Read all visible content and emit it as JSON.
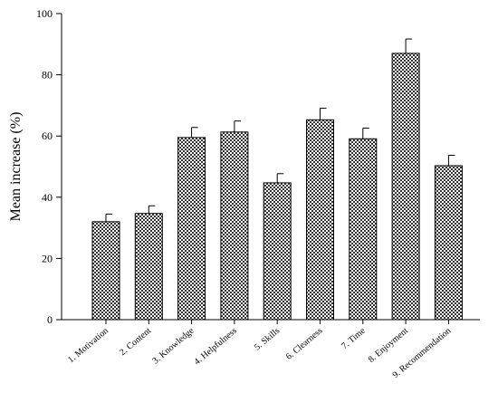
{
  "chart_data": {
    "type": "bar",
    "title": "",
    "xlabel": "",
    "ylabel": "Mean increase (%)",
    "ylim": [
      0,
      100
    ],
    "yticks": [
      0,
      20,
      40,
      60,
      80,
      100
    ],
    "grid": false,
    "legend": "none",
    "categories": [
      "1. Motivation",
      "2. Content",
      "3. Knowledge",
      "4. Helpfulness",
      "5. Skills",
      "6. Clearness",
      "7. Time",
      "8. Enjoyment",
      "9. Recommendation"
    ],
    "values": [
      32,
      34.7,
      59.5,
      61.3,
      44.7,
      65.3,
      59.1,
      87,
      50.3
    ],
    "error": [
      2.5,
      2.5,
      3.3,
      3.6,
      3,
      3.8,
      3.5,
      4.7,
      3.4
    ],
    "bar_fill": "#9e9e9e",
    "bar_pattern": "checkered",
    "axis_color": "#000000"
  }
}
